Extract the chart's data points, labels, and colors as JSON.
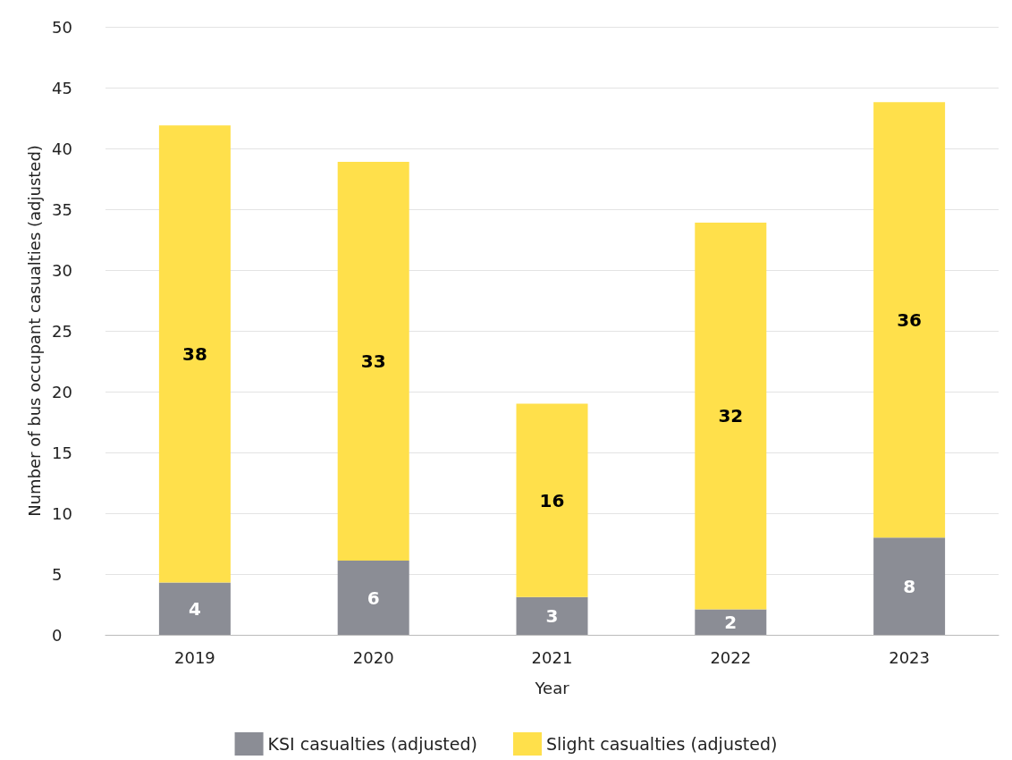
{
  "chart_data": {
    "type": "bar",
    "stacked": true,
    "xlabel": "Year",
    "ylabel": "Number of bus occupant casualties (adjusted)",
    "categories": [
      "2019",
      "2020",
      "2021",
      "2022",
      "2023"
    ],
    "series": [
      {
        "name": "KSI casualties (adjusted)",
        "color": "#8b8d95",
        "values": [
          4.3,
          6.1,
          3.1,
          2.1,
          8.0
        ],
        "value_labels": [
          "4",
          "6",
          "3",
          "2",
          "8"
        ]
      },
      {
        "name": "Slight casualties (adjusted)",
        "color": "#ffe04b",
        "values": [
          37.6,
          32.8,
          15.9,
          31.8,
          35.8
        ],
        "value_labels": [
          "38",
          "33",
          "16",
          "32",
          "36"
        ]
      }
    ],
    "ylim": [
      0,
      50
    ],
    "yticks": [
      0,
      5,
      10,
      15,
      20,
      25,
      30,
      35,
      40,
      45,
      50
    ],
    "grid": "y",
    "legend": "bottom"
  }
}
